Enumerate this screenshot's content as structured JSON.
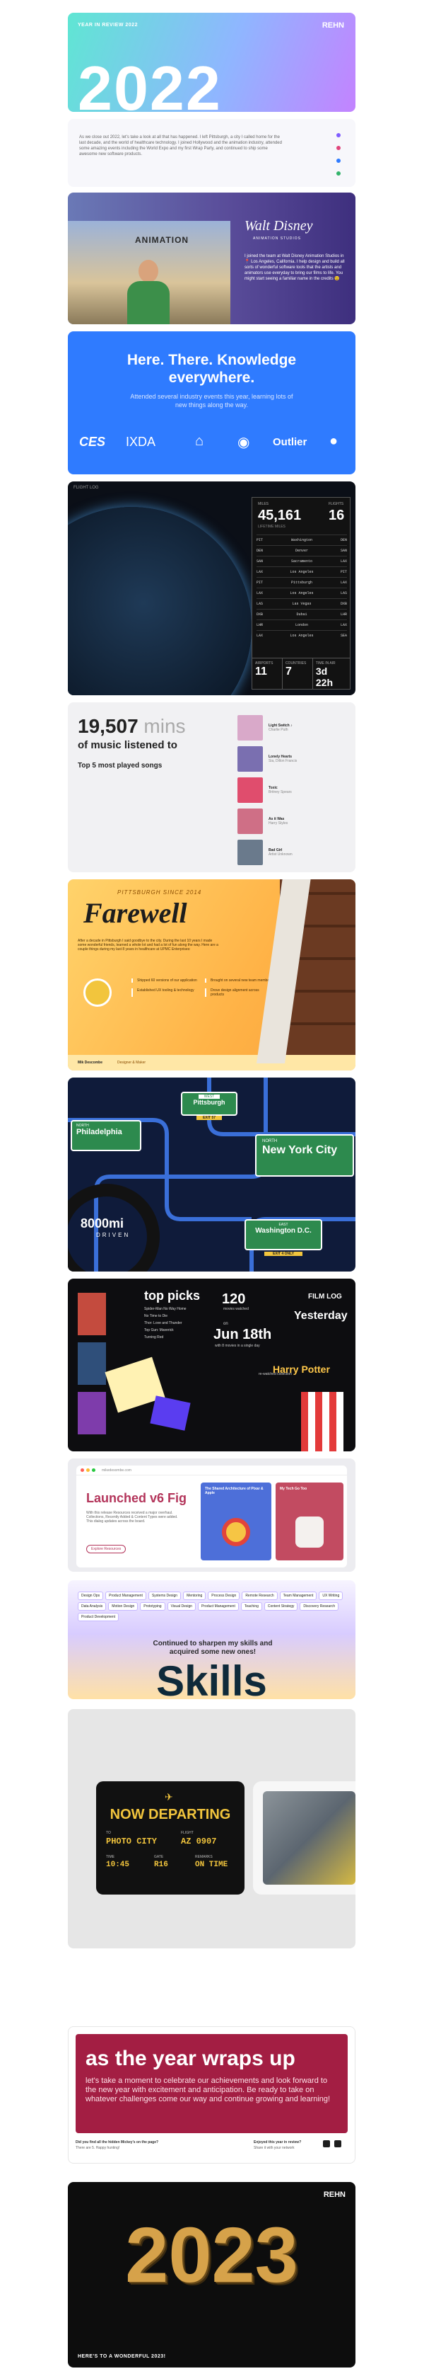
{
  "header": {
    "left": "YEAR IN REVIEW 2022",
    "logo": "REHN",
    "year": "2022",
    "gradient": [
      "#5fe6d3",
      "#8fb6ff",
      "#c383ff"
    ]
  },
  "intro": {
    "text": "As we close out 2022, let's take a look at all that has happened. I left Pittsburgh, a city I called home for the last decade, and the world of healthcare technology. I joined Hollywood and the animation industry, attended some amazing events including the World Expo and my first Wrap Party, and continued to ship some awesome new software products.",
    "dot_colors": [
      "#7f5cff",
      "#e0457b",
      "#2f7bff",
      "#32b36a"
    ]
  },
  "disney": {
    "logo": "Walt Disney",
    "logo_sub": "ANIMATION STUDIOS",
    "text": "I joined the team at Walt Disney Animation Studios in 📍 Los Angeles, California. I help design and build all sorts of wonderful software tools that the artists and animators use everyday to bring our films to life. You might start seeing a familiar name in the credits 😉",
    "sign": "ANIMATION"
  },
  "knowledge": {
    "title": "Here. There. Knowledge everywhere.",
    "subtitle": "Attended several industry events this year, learning lots of new things along the way.",
    "logos": [
      "CES",
      "IXDA",
      "⌂",
      "◉",
      "Outlier",
      "●"
    ]
  },
  "flight": {
    "label": "FLIGHT LOG",
    "miles_label": "MILES",
    "miles": "45,161",
    "miles_sub": "LIFETIME MILES",
    "flights_label": "FLIGHTS",
    "flights": "16",
    "rows": [
      [
        "PIT",
        "Washington",
        "DEN"
      ],
      [
        "DEN",
        "Denver",
        "SAN"
      ],
      [
        "SAN",
        "Sacramento",
        "LAX"
      ],
      [
        "LAX",
        "Los Angeles",
        "PIT"
      ],
      [
        "PIT",
        "Pittsburgh",
        "LAX"
      ],
      [
        "LAX",
        "Los Angeles",
        "LAS"
      ],
      [
        "LAS",
        "Las Vegas",
        "DXB"
      ],
      [
        "DXB",
        "Dubai",
        "LHR"
      ],
      [
        "LHR",
        "London",
        "LAX"
      ],
      [
        "LAX",
        "Los Angeles",
        "SEA"
      ]
    ],
    "bottom": [
      {
        "label": "AIRPORTS",
        "value": "11"
      },
      {
        "label": "COUNTRIES",
        "value": "7"
      },
      {
        "label": "TIME IN AIR",
        "value": "3d 22h"
      }
    ]
  },
  "music": {
    "count": "19,507",
    "unit": "mins",
    "line2": "of music listened to",
    "top": "Top 5 most played songs",
    "songs": [
      {
        "title": "Light Switch ♪",
        "artist": "Charlie Puth",
        "color": "#d9a9c9"
      },
      {
        "title": "Lonely Hearts",
        "artist": "Sia, Dillon Francis",
        "color": "#7a6fb0"
      },
      {
        "title": "Toxic",
        "artist": "Britney Spears",
        "color": "#e04d6d"
      },
      {
        "title": "As it Was",
        "artist": "Harry Styles",
        "color": "#cf6f86"
      },
      {
        "title": "Bad Girl",
        "artist": "Artist Unknown",
        "color": "#6a7a8c"
      }
    ]
  },
  "farewell": {
    "kicker": "PITTSBURGH SINCE 2014",
    "title": "Farewell",
    "text": "After a decade in Pittsburgh I said goodbye to the city. During the last 10 years I made some wonderful friends, learned a whole lot and had a lot of fun along the way. Here are a couple things during my last 8 years in healthcare at UPMC Enterprises:",
    "bullets": [
      "Shipped 60 versions of our application",
      "Brought on several new team members",
      "Established UX tooling & technology",
      "Drove design alignment across products"
    ],
    "footer_name": "Mik Descombe",
    "footer_sub": "Designer & Maker"
  },
  "roadmap": {
    "west": "WEST",
    "pittsburgh": "Pittsburgh",
    "exit_left": "EXIT 57",
    "north1": "NORTH",
    "philadelphia": "Philadelphia",
    "north2": "NORTH",
    "nyc": "New York City",
    "miles": "8000mi",
    "driven": "DRIVEN",
    "east": "EAST",
    "dc": "Washington D.C.",
    "exit_dc": "EXIT 4 ONLY"
  },
  "movies": {
    "top_picks": "top picks",
    "list": [
      "Spider-Man No Way Home",
      "No Time to Die",
      "Thor: Love and Thunder",
      "Top Gun: Maverick",
      "Turning Red"
    ],
    "count": "120",
    "count_sub": "movies watched",
    "on": "on",
    "date": "Jun 18th",
    "date_sub": "with 8 movies in a single day",
    "film_log": "FILM LOG",
    "yesterday": "Yesterday",
    "harry": "Harry Potter",
    "harry_sub": "re-watched collection"
  },
  "fig": {
    "url": "mikedesombe.com",
    "title": "Launched v6 Fig",
    "text": "With this release Resources received a major overhaul. Collections, Recently Added & Content Types were added. This dialog updates across the board.",
    "button": "Explore Resources",
    "card1_title": "The Shared Architecture of Pixar & Apple",
    "card2_title": "My Tech Go Too"
  },
  "skills": {
    "tags": [
      "Design Ops",
      "Product Management",
      "Systems Design",
      "Mentoring",
      "Process Design",
      "Remote Research",
      "Team Management",
      "UX Writing",
      "Data Analysis",
      "Motion Design",
      "Prototyping",
      "Visual Design",
      "Product Management",
      "Teaching",
      "Content Strategy",
      "Discovery Research",
      "Product Development"
    ],
    "line": "Continued to sharpen my skills and acquired some new ones!",
    "big": "Skills"
  },
  "departing": {
    "title": "NOW DEPARTING",
    "to_label": "TO",
    "to": "PHOTO CITY",
    "flight_label": "FLIGHT",
    "flight": "AZ 0907",
    "time_label": "TIME",
    "time": "10:45",
    "gate_label": "GATE",
    "gate": "R16",
    "remarks_label": "REMARKS",
    "remarks": "ON TIME"
  },
  "wrap": {
    "title": "as the year wraps up",
    "text": "let's take a moment to celebrate our achievements and look forward to the new year with excitement and anticipation. Be ready to take on whatever challenges come our way and continue growing and learning!",
    "left1": "Did you find all the hidden Mickey's on the page?",
    "left2": "There are 5. Happy hunting!",
    "right1": "Enjoyed this year in review?",
    "right2": "Share it with your network"
  },
  "footer": {
    "year": "2023",
    "logo": "REHN",
    "left": "HERE'S TO A WONDERFUL 2023!"
  }
}
